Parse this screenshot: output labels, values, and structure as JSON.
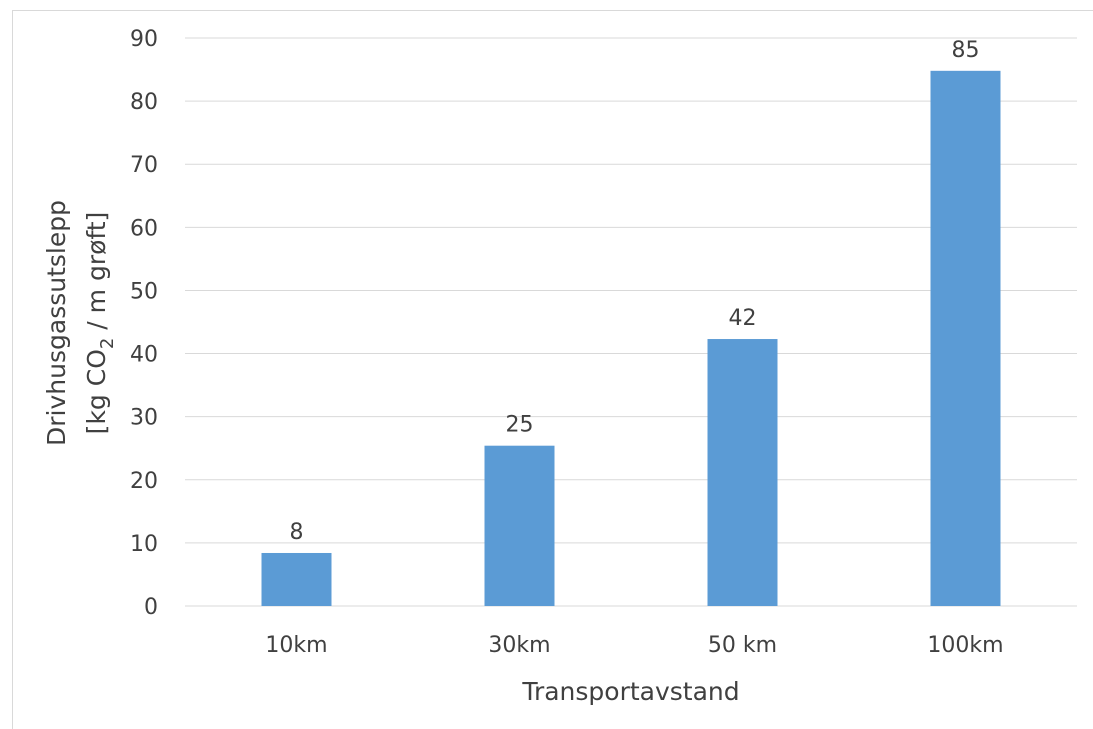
{
  "chart_data": {
    "type": "bar",
    "title": "",
    "xlabel": "Transportavstand",
    "ylabel": {
      "line1": "Drivhusgassutslepp",
      "line2_pre": "[kg CO",
      "line2_sub": "2",
      "line2_post": " / m grøft]"
    },
    "categories": [
      "10km",
      "30km",
      "50 km",
      "100km"
    ],
    "values": [
      8.4,
      25.4,
      42.3,
      84.8
    ],
    "data_labels": [
      "8",
      "25",
      "42",
      "85"
    ],
    "ylim": [
      0,
      90
    ],
    "yticks": [
      0,
      10,
      20,
      30,
      40,
      50,
      60,
      70,
      80,
      90
    ],
    "grid": true,
    "legend": "none",
    "colors": {
      "bar": "#5b9bd5",
      "grid": "#d9d9d9",
      "text": "#404040"
    }
  }
}
